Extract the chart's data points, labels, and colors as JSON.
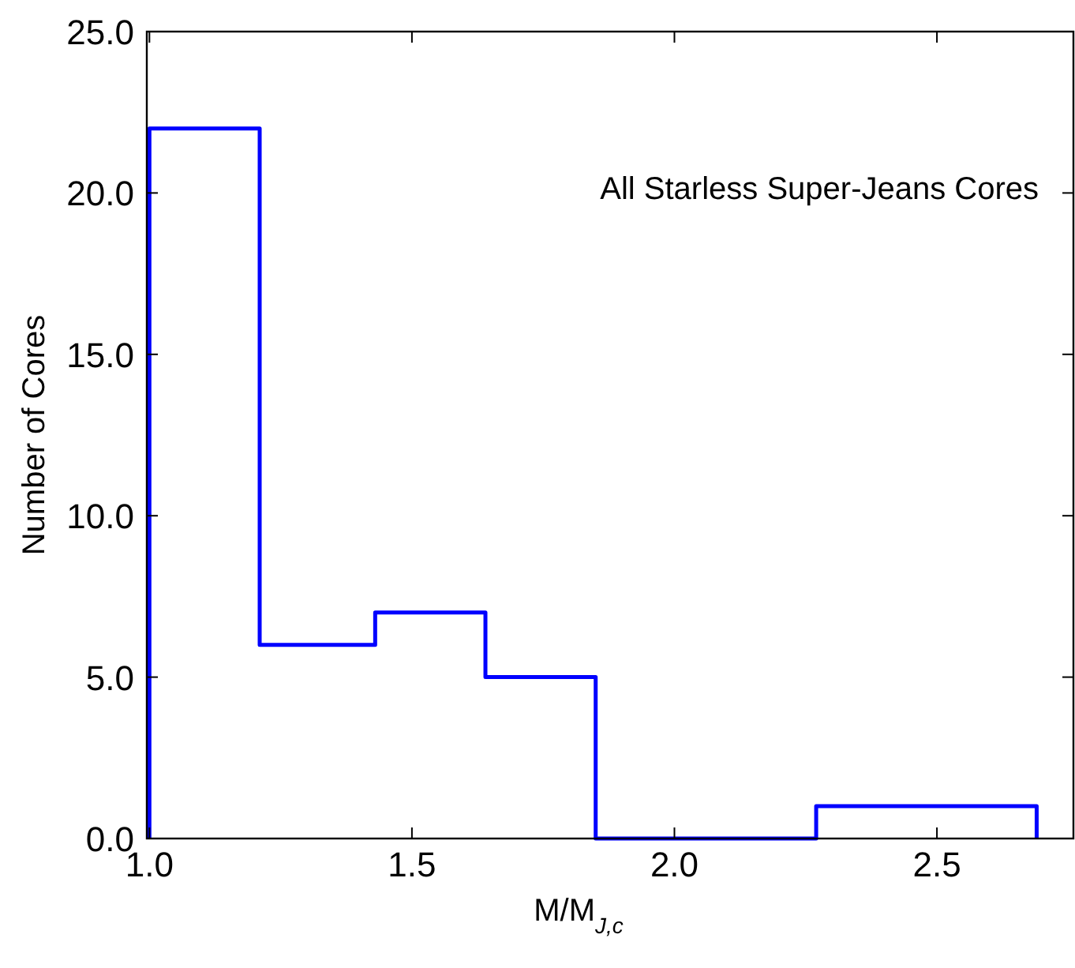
{
  "chart_data": {
    "type": "histogram",
    "xlabel": "M/M$_{J,c}$",
    "ylabel": "Number of Cores",
    "annotations": [
      "All Starless Super-Jeans Cores"
    ],
    "bins": [
      1.0,
      1.21,
      1.43,
      1.64,
      1.85,
      2.06,
      2.27,
      2.48,
      2.69
    ],
    "values": [
      22,
      6,
      7,
      5,
      0,
      0,
      1,
      1
    ],
    "color": "#0000ff",
    "xlim": [
      0.995,
      2.76
    ],
    "ylim": [
      0,
      25
    ],
    "xticks": [
      {
        "value": 1,
        "label": "1.0"
      },
      {
        "value": 1.5,
        "label": "1.5"
      },
      {
        "value": 2,
        "label": "2.0"
      },
      {
        "value": 2.5,
        "label": "2.5"
      }
    ],
    "yticks": [
      {
        "value": 0,
        "label": "0.0"
      },
      {
        "value": 5,
        "label": "5.0"
      },
      {
        "value": 10,
        "label": "10.0"
      },
      {
        "value": 15,
        "label": "15.0"
      },
      {
        "value": 20,
        "label": "20.0"
      },
      {
        "value": 25,
        "label": "25.0"
      }
    ],
    "grid": false
  }
}
